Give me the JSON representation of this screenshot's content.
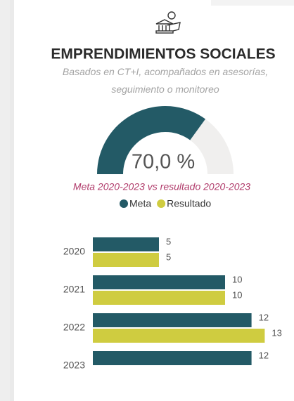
{
  "chart_data": [
    {
      "type": "gauge",
      "title": "EMPRENDIMIENTOS SOCIALES",
      "subtitle": "Basados en CT+I, acompañados en asesorías, seguimiento o monitoreo",
      "values": [
        70
      ],
      "value_labels": [
        "70,0 %"
      ],
      "ylim": [
        0,
        100
      ],
      "color": "#235a66",
      "track_color": "#f0efee"
    },
    {
      "type": "bar",
      "orientation": "horizontal",
      "title": "Meta 2020-2023 vs resultado 2020-2023",
      "categories": [
        "2020",
        "2021",
        "2022",
        "2023"
      ],
      "series": [
        {
          "name": "Meta",
          "color": "#235a66",
          "values": [
            5,
            10,
            12,
            12
          ]
        },
        {
          "name": "Resultado",
          "color": "#cfcc40",
          "values": [
            5,
            10,
            13,
            null
          ]
        }
      ],
      "xlim": [
        0,
        15
      ],
      "legend": "top",
      "data_labels": true
    }
  ]
}
